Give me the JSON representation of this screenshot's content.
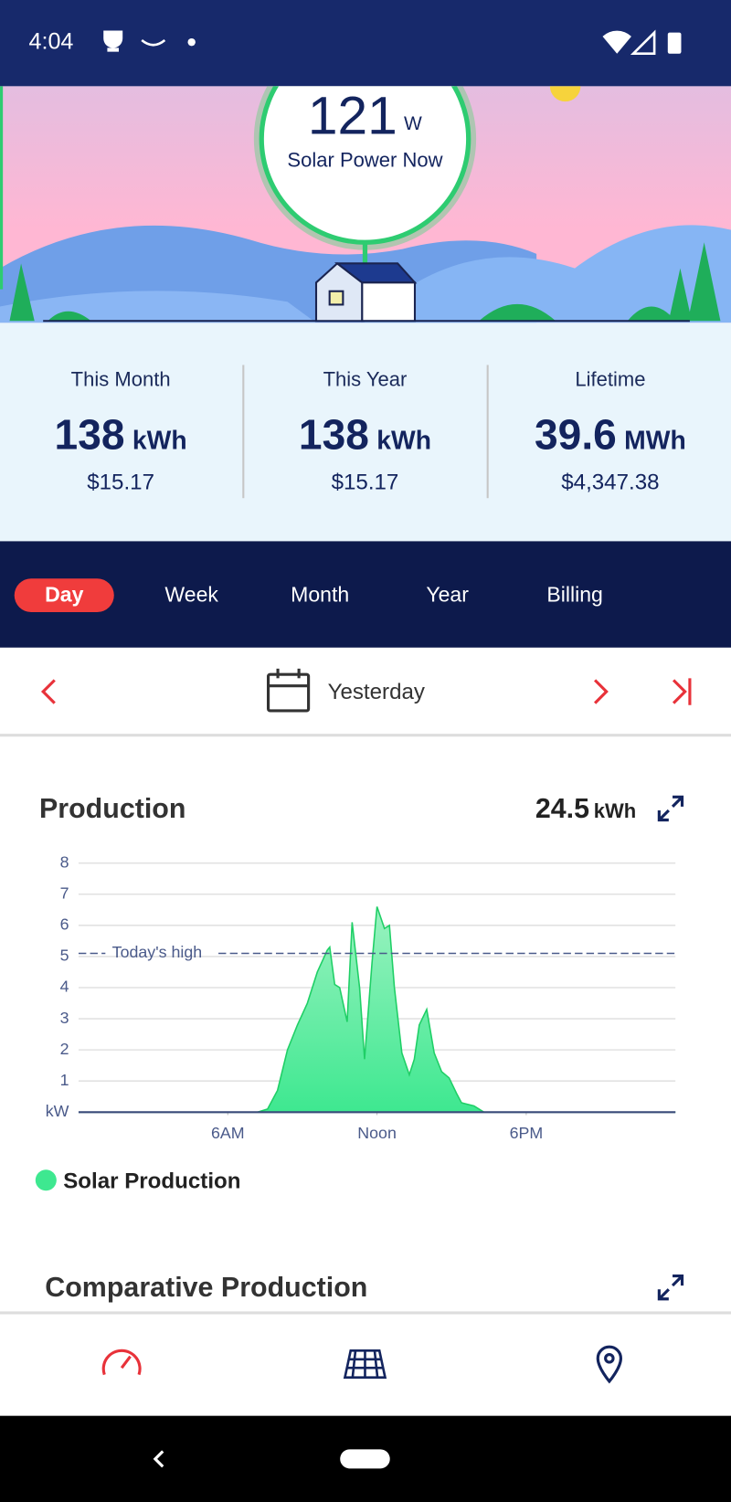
{
  "status_bar": {
    "time": "4:04"
  },
  "hero": {
    "power": "121",
    "unit": "W",
    "label": "Solar Power Now"
  },
  "stats": [
    {
      "label": "This Month",
      "value": "138",
      "unit": "kWh",
      "savings": "$15.17"
    },
    {
      "label": "This Year",
      "value": "138",
      "unit": "kWh",
      "savings": "$15.17"
    },
    {
      "label": "Lifetime",
      "value": "39.6",
      "unit": "MWh",
      "savings": "$4,347.38"
    }
  ],
  "tabs": {
    "items": [
      "Day",
      "Week",
      "Month",
      "Year",
      "Billing"
    ],
    "active": "Day"
  },
  "date_nav": {
    "label": "Yesterday"
  },
  "production": {
    "title": "Production",
    "total": "24.5",
    "unit": "kWh"
  },
  "chart_data": {
    "type": "area",
    "x": [
      0,
      7.2,
      7.6,
      8.0,
      8.4,
      8.8,
      9.2,
      9.6,
      10.0,
      10.1,
      10.3,
      10.5,
      10.8,
      11.0,
      11.3,
      11.5,
      11.8,
      12.0,
      12.3,
      12.5,
      12.7,
      13.0,
      13.3,
      13.5,
      13.7,
      14.0,
      14.3,
      14.6,
      14.9,
      15.2,
      15.4,
      15.9,
      16.3,
      24
    ],
    "series": [
      {
        "name": "Solar Production",
        "color": "#3ee890",
        "values": [
          0,
          0,
          0.1,
          0.7,
          2.0,
          2.8,
          3.5,
          4.5,
          5.2,
          5.3,
          4.1,
          4.0,
          2.9,
          6.1,
          4.0,
          1.7,
          4.8,
          6.6,
          5.9,
          6.0,
          4.0,
          1.9,
          1.2,
          1.7,
          2.8,
          3.3,
          1.9,
          1.3,
          1.1,
          0.6,
          0.3,
          0.2,
          0,
          0
        ]
      }
    ],
    "xlim": [
      0,
      24
    ],
    "xticks": [
      {
        "value": 6,
        "label": "6AM"
      },
      {
        "value": 12,
        "label": "Noon"
      },
      {
        "value": 18,
        "label": "6PM"
      }
    ],
    "ylim": [
      0,
      8
    ],
    "yticks": [
      {
        "value": 0,
        "label": "kW"
      },
      1,
      2,
      3,
      4,
      5,
      6,
      7,
      8
    ],
    "grid": true,
    "annotations": [
      {
        "label": "Today's high",
        "value": 5.1
      }
    ]
  },
  "comparative": {
    "title": "Comparative Production"
  }
}
